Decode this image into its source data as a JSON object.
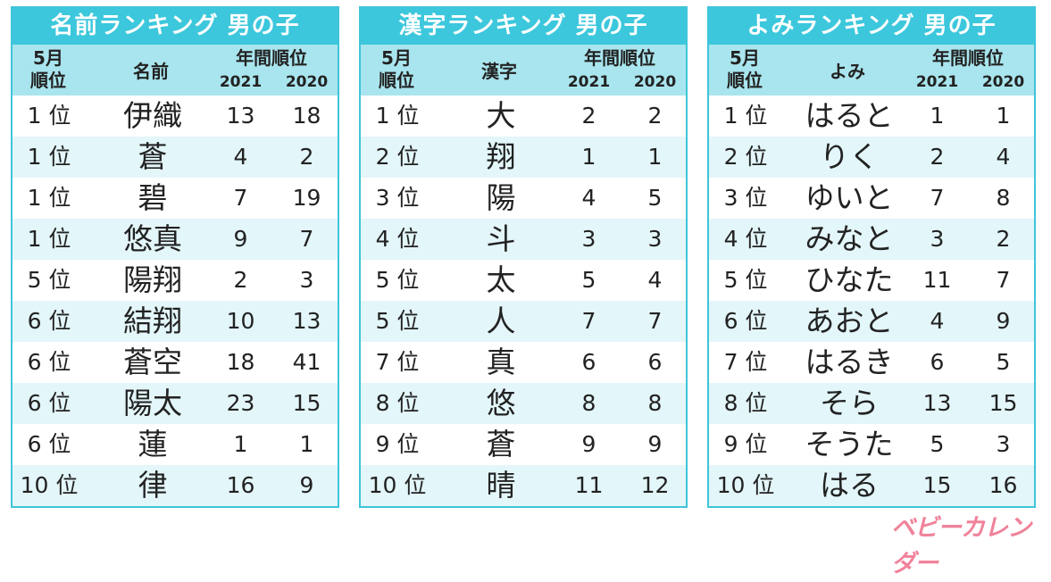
{
  "panels": [
    {
      "title": "名前ランキング 男の子",
      "head": {
        "rank_line1": "5月",
        "rank_line2": "順位",
        "name": "名前",
        "annual": "年間順位",
        "year1": "2021",
        "year2": "2020"
      },
      "rows": [
        {
          "rank": "1 位",
          "name": "伊織",
          "y2021": "13",
          "y2020": "18"
        },
        {
          "rank": "1 位",
          "name": "蒼",
          "y2021": "4",
          "y2020": "2"
        },
        {
          "rank": "1 位",
          "name": "碧",
          "y2021": "7",
          "y2020": "19"
        },
        {
          "rank": "1 位",
          "name": "悠真",
          "y2021": "9",
          "y2020": "7"
        },
        {
          "rank": "5 位",
          "name": "陽翔",
          "y2021": "2",
          "y2020": "3"
        },
        {
          "rank": "6 位",
          "name": "結翔",
          "y2021": "10",
          "y2020": "13"
        },
        {
          "rank": "6 位",
          "name": "蒼空",
          "y2021": "18",
          "y2020": "41"
        },
        {
          "rank": "6 位",
          "name": "陽太",
          "y2021": "23",
          "y2020": "15"
        },
        {
          "rank": "6 位",
          "name": "蓮",
          "y2021": "1",
          "y2020": "1"
        },
        {
          "rank": "10 位",
          "name": "律",
          "y2021": "16",
          "y2020": "9"
        }
      ]
    },
    {
      "title": "漢字ランキング 男の子",
      "head": {
        "rank_line1": "5月",
        "rank_line2": "順位",
        "name": "漢字",
        "annual": "年間順位",
        "year1": "2021",
        "year2": "2020"
      },
      "rows": [
        {
          "rank": "1 位",
          "name": "大",
          "y2021": "2",
          "y2020": "2"
        },
        {
          "rank": "2 位",
          "name": "翔",
          "y2021": "1",
          "y2020": "1"
        },
        {
          "rank": "3 位",
          "name": "陽",
          "y2021": "4",
          "y2020": "5"
        },
        {
          "rank": "4 位",
          "name": "斗",
          "y2021": "3",
          "y2020": "3"
        },
        {
          "rank": "5 位",
          "name": "太",
          "y2021": "5",
          "y2020": "4"
        },
        {
          "rank": "5 位",
          "name": "人",
          "y2021": "7",
          "y2020": "7"
        },
        {
          "rank": "7 位",
          "name": "真",
          "y2021": "6",
          "y2020": "6"
        },
        {
          "rank": "8 位",
          "name": "悠",
          "y2021": "8",
          "y2020": "8"
        },
        {
          "rank": "9 位",
          "name": "蒼",
          "y2021": "9",
          "y2020": "9"
        },
        {
          "rank": "10 位",
          "name": "晴",
          "y2021": "11",
          "y2020": "12"
        }
      ]
    },
    {
      "title": "よみランキング 男の子",
      "head": {
        "rank_line1": "5月",
        "rank_line2": "順位",
        "name": "よみ",
        "annual": "年間順位",
        "year1": "2021",
        "year2": "2020"
      },
      "rows": [
        {
          "rank": "1 位",
          "name": "はると",
          "y2021": "1",
          "y2020": "1"
        },
        {
          "rank": "2 位",
          "name": "りく",
          "y2021": "2",
          "y2020": "4"
        },
        {
          "rank": "3 位",
          "name": "ゆいと",
          "y2021": "7",
          "y2020": "8"
        },
        {
          "rank": "4 位",
          "name": "みなと",
          "y2021": "3",
          "y2020": "2"
        },
        {
          "rank": "5 位",
          "name": "ひなた",
          "y2021": "11",
          "y2020": "7"
        },
        {
          "rank": "6 位",
          "name": "あおと",
          "y2021": "4",
          "y2020": "9"
        },
        {
          "rank": "7 位",
          "name": "はるき",
          "y2021": "6",
          "y2020": "5"
        },
        {
          "rank": "8 位",
          "name": "そら",
          "y2021": "13",
          "y2020": "15"
        },
        {
          "rank": "9 位",
          "name": "そうた",
          "y2021": "5",
          "y2020": "3"
        },
        {
          "rank": "10 位",
          "name": "はる",
          "y2021": "15",
          "y2020": "16"
        }
      ]
    }
  ],
  "logo": "ベビーカレンダー",
  "colors": {
    "accent": "#3cc7dc",
    "header_bg": "#a9e5ee",
    "row_alt": "#e3f6f9",
    "logo": "#f0829a"
  }
}
